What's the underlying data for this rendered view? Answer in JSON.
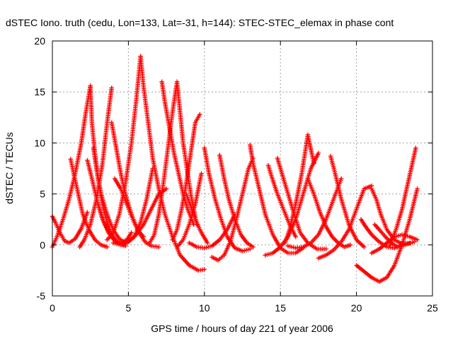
{
  "chart_data": {
    "type": "scatter",
    "title": "dSTEC Iono. truth (cedu, Lon=133, Lat=-31, h=144): STEC-STEC_elemax in phase cont",
    "xlabel": "GPS time / hours of day 221 of year 2006",
    "ylabel": "dSTEC  / TECUs",
    "xlim": [
      0,
      25
    ],
    "ylim": [
      -5,
      20
    ],
    "xticks": [
      0,
      5,
      10,
      15,
      20,
      25
    ],
    "yticks": [
      -5,
      0,
      5,
      10,
      15,
      20
    ],
    "xtick_labels": [
      "0",
      "5",
      "10",
      "15",
      "20",
      "25"
    ],
    "ytick_labels": [
      "-5",
      "0",
      "5",
      "10",
      "15",
      "20"
    ],
    "grid": true,
    "marker": "+",
    "color": "#ff0000",
    "series": [
      {
        "x": [
          0.0,
          0.3,
          0.7,
          1.1,
          1.5,
          1.9,
          2.2,
          2.5
        ],
        "y": [
          -0.2,
          0.8,
          2.5,
          4.5,
          7.0,
          10.0,
          13.0,
          15.6
        ]
      },
      {
        "x": [
          2.5,
          2.6,
          2.8,
          3.0,
          3.3,
          3.6,
          3.9,
          4.3,
          4.8
        ],
        "y": [
          15.6,
          12.0,
          9.0,
          6.5,
          4.0,
          2.2,
          1.0,
          0.2,
          -0.1
        ]
      },
      {
        "x": [
          0.0,
          0.2,
          0.5,
          0.8,
          1.1,
          1.5,
          1.9,
          2.3
        ],
        "y": [
          2.8,
          2.2,
          1.2,
          0.4,
          0.2,
          0.6,
          1.6,
          3.2
        ]
      },
      {
        "x": [
          1.2,
          1.4,
          1.7,
          2.0,
          2.4,
          2.8,
          3.2,
          3.6
        ],
        "y": [
          8.4,
          7.0,
          5.0,
          3.0,
          1.5,
          0.5,
          0.0,
          -0.2
        ]
      },
      {
        "x": [
          1.8,
          2.1,
          2.5,
          2.9,
          3.3,
          3.6,
          3.9
        ],
        "y": [
          -0.2,
          0.5,
          2.0,
          4.5,
          8.0,
          12.0,
          15.4
        ]
      },
      {
        "x": [
          2.7,
          2.9,
          3.2,
          3.6,
          4.0,
          4.4,
          4.8
        ],
        "y": [
          9.5,
          7.5,
          5.0,
          3.0,
          1.5,
          0.6,
          0.2
        ]
      },
      {
        "x": [
          2.3,
          2.6,
          3.0,
          3.4,
          3.8,
          4.2,
          4.6,
          5.0
        ],
        "y": [
          8.3,
          6.5,
          4.0,
          2.2,
          1.0,
          0.3,
          0.0,
          0.3
        ]
      },
      {
        "x": [
          3.0,
          3.3,
          3.7,
          4.1,
          4.5,
          4.9,
          5.2
        ],
        "y": [
          4.0,
          2.5,
          1.2,
          0.4,
          0.2,
          0.5,
          1.2
        ]
      },
      {
        "x": [
          3.9,
          4.2,
          4.5,
          4.8,
          5.2,
          5.6,
          6.0
        ],
        "y": [
          12.0,
          9.5,
          7.0,
          5.0,
          3.0,
          1.5,
          0.8
        ]
      },
      {
        "x": [
          4.1,
          4.5,
          4.9,
          5.3,
          5.7,
          6.1,
          6.5,
          7.0
        ],
        "y": [
          6.5,
          5.5,
          4.0,
          2.5,
          1.2,
          0.3,
          -0.1,
          -0.2
        ]
      },
      {
        "x": [
          3.6,
          4.0,
          4.4,
          4.8,
          5.2,
          5.5,
          5.8
        ],
        "y": [
          0.5,
          1.2,
          3.0,
          6.0,
          10.0,
          14.0,
          18.5
        ]
      },
      {
        "x": [
          5.8,
          6.0,
          6.3,
          6.6,
          7.0,
          7.4,
          7.9,
          8.4,
          9.0,
          9.6,
          10.0
        ],
        "y": [
          18.5,
          15.5,
          12.0,
          8.5,
          5.5,
          3.0,
          0.8,
          -1.0,
          -2.0,
          -2.5,
          -2.4
        ]
      },
      {
        "x": [
          5.0,
          5.4,
          5.8,
          6.2,
          6.6
        ],
        "y": [
          0.3,
          0.8,
          2.2,
          4.5,
          7.5
        ]
      },
      {
        "x": [
          4.0,
          4.5,
          5.0,
          5.5,
          6.0,
          6.5,
          7.0,
          7.5
        ],
        "y": [
          0.2,
          0.0,
          0.3,
          1.0,
          2.0,
          3.5,
          5.0,
          5.5
        ]
      },
      {
        "x": [
          6.4,
          6.7,
          7.0,
          7.3,
          7.6,
          7.9,
          8.2,
          8.6,
          9.1,
          9.5
        ],
        "y": [
          0.2,
          1.0,
          3.0,
          6.0,
          9.5,
          13.0,
          16.0,
          10.0,
          5.0,
          2.0
        ]
      },
      {
        "x": [
          7.2,
          7.4,
          7.7,
          8.0,
          8.3,
          8.6,
          8.9,
          9.3
        ],
        "y": [
          16.0,
          14.0,
          11.5,
          9.0,
          7.0,
          5.0,
          3.5,
          2.0
        ]
      },
      {
        "x": [
          7.9,
          8.2,
          8.5,
          8.8,
          9.1,
          9.4,
          9.7
        ],
        "y": [
          0.5,
          1.5,
          3.5,
          6.0,
          9.0,
          12.0,
          12.8
        ]
      },
      {
        "x": [
          8.8,
          9.1,
          9.4,
          9.8,
          10.2
        ],
        "y": [
          5.0,
          3.8,
          2.5,
          1.2,
          0.2
        ]
      },
      {
        "x": [
          8.2,
          8.6,
          9.0,
          9.4,
          9.8
        ],
        "y": [
          -0.2,
          0.5,
          2.0,
          4.0,
          7.0
        ]
      },
      {
        "x": [
          10.0,
          10.3,
          10.7,
          11.1,
          11.5,
          12.0,
          12.5,
          13.0
        ],
        "y": [
          9.5,
          7.0,
          4.5,
          2.5,
          0.8,
          -0.3,
          -0.6,
          -0.4
        ]
      },
      {
        "x": [
          9.0,
          9.5,
          10.0,
          10.5,
          11.0,
          11.5,
          12.0
        ],
        "y": [
          0.2,
          -0.2,
          -0.3,
          -0.1,
          0.5,
          1.5,
          3.0
        ]
      },
      {
        "x": [
          10.5,
          10.9,
          11.3,
          11.7,
          12.1,
          12.5,
          12.9,
          13.2
        ],
        "y": [
          -1.2,
          -1.5,
          -1.0,
          0.3,
          2.5,
          5.0,
          7.5,
          8.5
        ]
      },
      {
        "x": [
          11.0,
          11.3,
          11.6,
          12.0,
          12.4,
          12.8,
          13.2
        ],
        "y": [
          8.8,
          6.5,
          4.5,
          2.5,
          1.0,
          0.2,
          -0.2
        ]
      },
      {
        "x": [
          13.0,
          13.2,
          13.6,
          14.0,
          14.5,
          15.0,
          15.5,
          16.0,
          16.5
        ],
        "y": [
          9.8,
          8.0,
          5.5,
          3.0,
          1.0,
          -0.3,
          -0.8,
          -0.8,
          -0.3
        ]
      },
      {
        "x": [
          14.0,
          14.5,
          15.0,
          15.5,
          16.0,
          16.5,
          17.0,
          17.5
        ],
        "y": [
          -1.0,
          -0.8,
          -0.2,
          0.8,
          2.5,
          5.0,
          7.5,
          9.0
        ]
      },
      {
        "x": [
          14.8,
          15.1,
          15.5,
          15.9,
          16.3,
          16.8,
          17.4,
          18.0
        ],
        "y": [
          8.5,
          7.0,
          5.0,
          3.0,
          1.2,
          0.2,
          -0.4,
          -0.4
        ]
      },
      {
        "x": [
          14.2,
          14.4,
          14.8,
          15.2,
          15.6,
          16.0
        ],
        "y": [
          7.8,
          6.8,
          5.0,
          3.5,
          2.0,
          0.8
        ]
      },
      {
        "x": [
          15.3,
          15.6,
          16.0,
          16.4,
          16.8,
          17.2
        ],
        "y": [
          0.2,
          1.5,
          4.0,
          7.0,
          10.8,
          8.0
        ]
      },
      {
        "x": [
          15.5,
          16.0,
          16.5,
          17.0,
          17.5,
          18.0,
          18.5,
          19.0
        ],
        "y": [
          -0.1,
          -0.3,
          -0.2,
          0.2,
          1.0,
          2.5,
          4.5,
          6.5
        ]
      },
      {
        "x": [
          16.8,
          17.2,
          17.6,
          18.0,
          18.4,
          18.8,
          19.2,
          19.6
        ],
        "y": [
          6.5,
          5.0,
          3.2,
          1.8,
          0.8,
          0.2,
          -0.2,
          0.0
        ]
      },
      {
        "x": [
          17.5,
          18.0,
          18.5,
          19.0,
          19.5,
          20.0,
          20.5,
          21.0
        ],
        "y": [
          -1.3,
          -1.0,
          -0.5,
          0.3,
          1.5,
          3.5,
          5.5,
          5.8
        ]
      },
      {
        "x": [
          18.3,
          18.6,
          19.0,
          19.5,
          20.0,
          20.5
        ],
        "y": [
          8.7,
          7.0,
          4.5,
          2.0,
          0.5,
          -0.2
        ]
      },
      {
        "x": [
          20.3,
          20.6,
          21.0,
          21.5,
          22.0,
          22.5,
          23.0
        ],
        "y": [
          2.5,
          1.8,
          1.0,
          0.3,
          -0.2,
          -0.3,
          0.0
        ]
      },
      {
        "x": [
          20.0,
          20.5,
          21.0,
          21.5,
          22.0,
          22.5,
          23.0,
          23.5,
          24.0
        ],
        "y": [
          -2.0,
          -2.6,
          -3.2,
          -3.6,
          -3.2,
          -2.0,
          0.0,
          2.5,
          5.5
        ]
      },
      {
        "x": [
          21.0,
          21.3,
          21.6,
          22.0,
          22.5,
          23.0,
          23.5
        ],
        "y": [
          5.5,
          4.5,
          3.0,
          1.5,
          0.5,
          0.1,
          0.2
        ]
      },
      {
        "x": [
          21.0,
          21.5,
          22.0,
          22.5,
          23.0,
          23.5,
          24.0
        ],
        "y": [
          -0.8,
          -0.4,
          0.2,
          0.8,
          1.0,
          0.8,
          0.5
        ]
      },
      {
        "x": [
          22.2,
          22.6,
          23.0,
          23.3,
          23.6,
          23.9
        ],
        "y": [
          0.0,
          1.5,
          3.5,
          5.5,
          7.5,
          9.5
        ]
      },
      {
        "x": [
          21.2,
          21.5,
          21.9,
          22.3,
          22.7,
          23.2,
          23.8
        ],
        "y": [
          2.0,
          1.5,
          0.8,
          0.2,
          -0.2,
          0.0,
          0.3
        ]
      }
    ]
  }
}
